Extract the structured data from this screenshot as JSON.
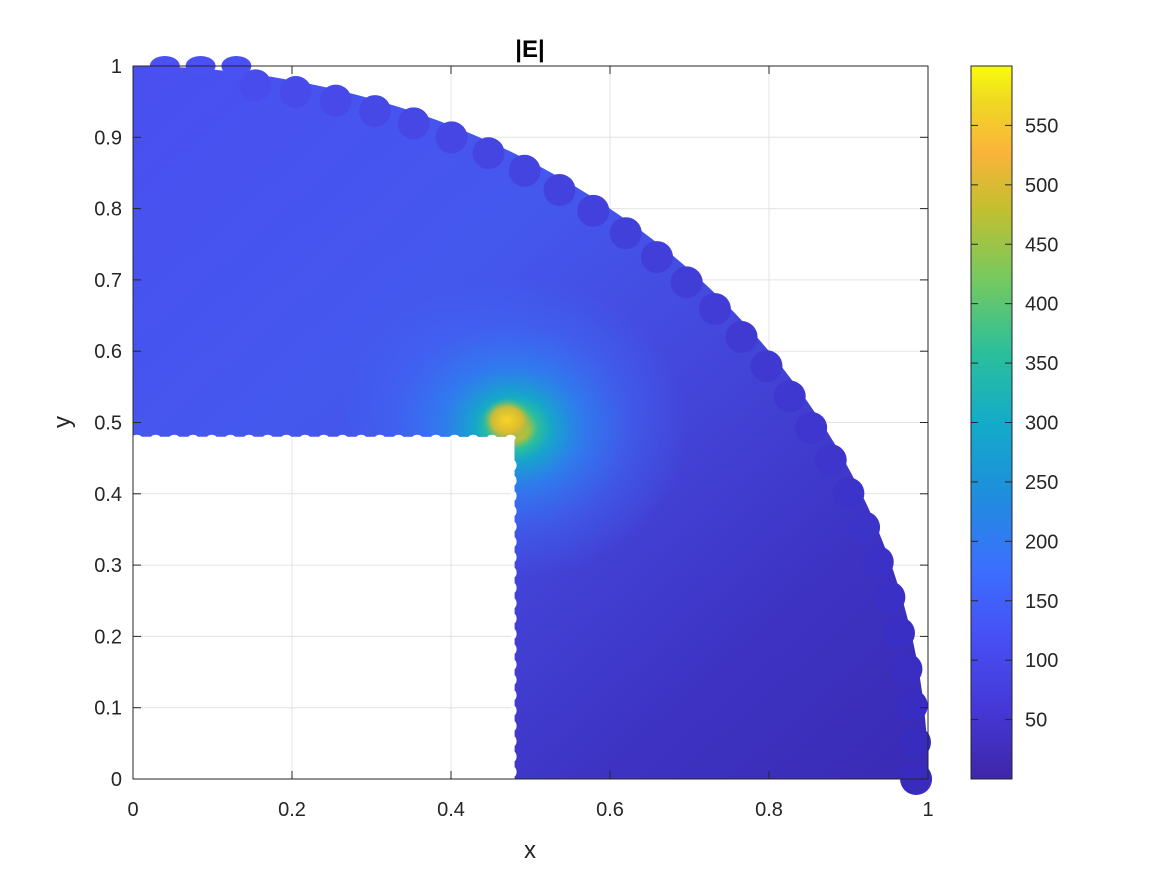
{
  "chart_data": {
    "type": "heatmap",
    "title": "|E|",
    "xlabel": "x",
    "ylabel": "y",
    "xlim": [
      0,
      1
    ],
    "ylim": [
      0,
      1
    ],
    "grid": true,
    "x_ticks": [
      "0",
      "0.2",
      "0.4",
      "0.6",
      "0.8",
      "1"
    ],
    "y_ticks": [
      "0",
      "0.1",
      "0.2",
      "0.3",
      "0.4",
      "0.5",
      "0.6",
      "0.7",
      "0.8",
      "0.9",
      "1"
    ],
    "domain": {
      "shape": "quarter-disk of radius 1 centered at origin, minus the square [0, 0.48] x [0, 0.48]",
      "outer_radius": 1.0,
      "inner_corner": [
        0.48,
        0.48
      ]
    },
    "field": {
      "quantity": "|E|",
      "peak_location": [
        0.48,
        0.5
      ],
      "peak_value": 560,
      "approximate_values": [
        {
          "x": 0.05,
          "y": 0.95,
          "value": 105
        },
        {
          "x": 0.2,
          "y": 0.75,
          "value": 118
        },
        {
          "x": 0.1,
          "y": 0.55,
          "value": 120
        },
        {
          "x": 0.4,
          "y": 0.6,
          "value": 150
        },
        {
          "x": 0.48,
          "y": 0.5,
          "value": 560
        },
        {
          "x": 0.6,
          "y": 0.6,
          "value": 110
        },
        {
          "x": 0.6,
          "y": 0.3,
          "value": 55
        },
        {
          "x": 0.9,
          "y": 0.1,
          "value": 30
        }
      ]
    },
    "colorbar": {
      "colormap": "parula",
      "range": [
        0,
        600
      ],
      "ticks": [
        "50",
        "100",
        "150",
        "200",
        "250",
        "300",
        "350",
        "400",
        "450",
        "500",
        "550"
      ]
    }
  }
}
